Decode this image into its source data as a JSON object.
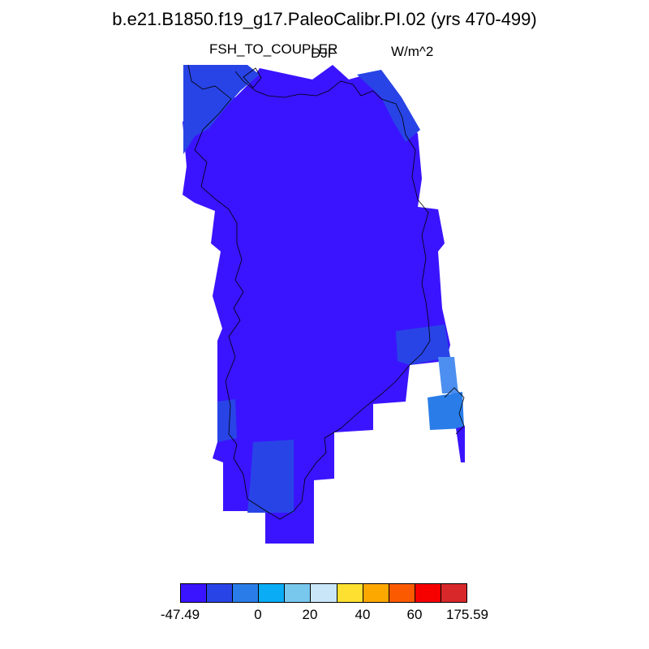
{
  "title": "b.e21.B1850.f19_g17.PaleoCalibr.PI.02 (yrs 470-499)",
  "variable_label": "FSH_TO_COUPLER",
  "season_label": "DJF",
  "units_label": "W/m^2",
  "colorbar": {
    "colors": [
      "#3a14ff",
      "#2844e6",
      "#2a7de8",
      "#0aacf5",
      "#78c8ee",
      "#c8e6f8",
      "#fde030",
      "#fca800",
      "#fc5a00",
      "#f70000",
      "#d8282a"
    ],
    "tick_labels": [
      "-47.49",
      "0",
      "20",
      "40",
      "60",
      "175.59"
    ]
  },
  "map": {
    "fill_colors": {
      "dominant": "#3a14ff",
      "secondary": "#2844e6",
      "light": "#2a7de8",
      "lightest": "#4d8ff0"
    },
    "coastline_color": "#000000"
  }
}
